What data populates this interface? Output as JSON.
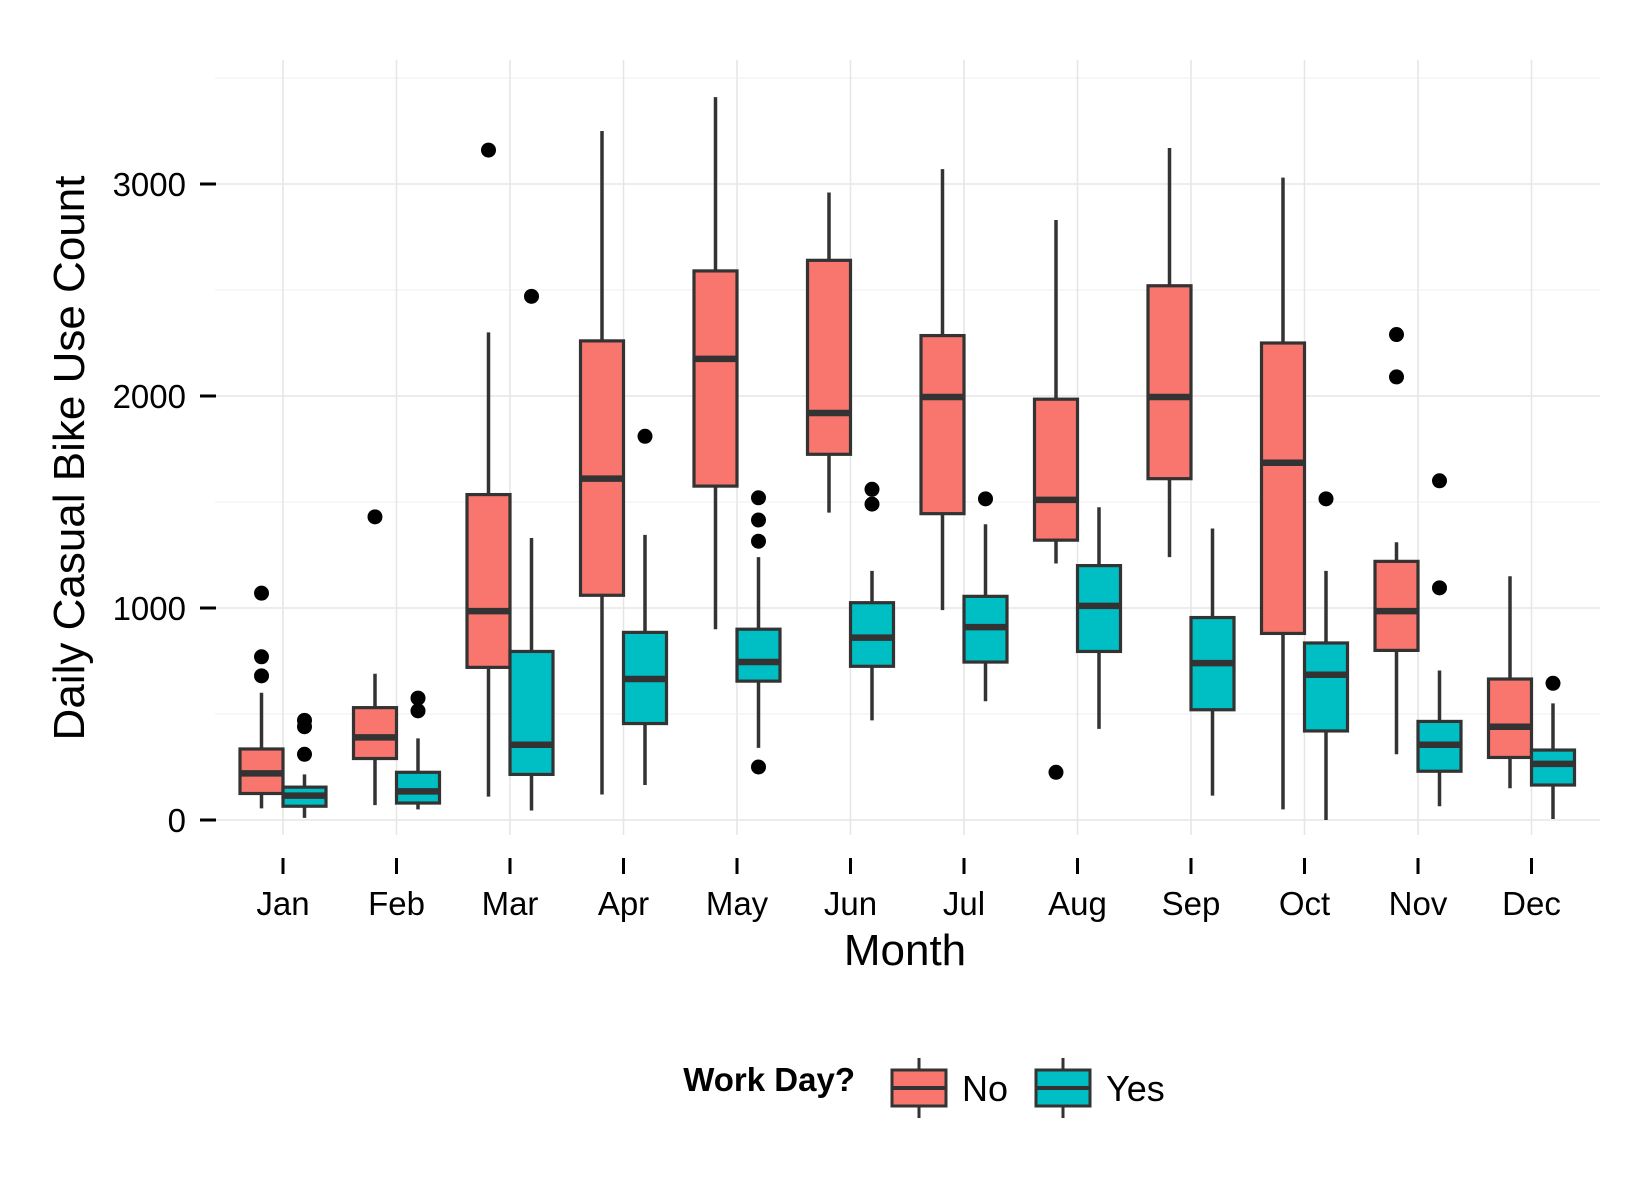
{
  "chart_data": {
    "type": "boxplot",
    "title": "",
    "xlabel": "Month",
    "ylabel": "Daily Casual Bike Use Count",
    "categories": [
      "Jan",
      "Feb",
      "Mar",
      "Apr",
      "May",
      "Jun",
      "Jul",
      "Aug",
      "Sep",
      "Oct",
      "Nov",
      "Dec"
    ],
    "yticks": [
      0,
      1000,
      2000,
      3000
    ],
    "ylim": [
      -120,
      3520
    ],
    "grid": true,
    "legend": {
      "title": "Work Day?",
      "position": "bottom"
    },
    "series": [
      {
        "name": "No",
        "color": "#F8766D",
        "boxes": [
          {
            "min": 55,
            "q1": 125,
            "median": 220,
            "q3": 335,
            "max": 600,
            "outliers": [
              680,
              770,
              1070
            ]
          },
          {
            "min": 70,
            "q1": 290,
            "median": 390,
            "q3": 530,
            "max": 690,
            "outliers": [
              1430
            ]
          },
          {
            "min": 110,
            "q1": 720,
            "median": 985,
            "q3": 1535,
            "max": 2300,
            "outliers": [
              3160
            ]
          },
          {
            "min": 120,
            "q1": 1060,
            "median": 1610,
            "q3": 2260,
            "max": 3250,
            "outliers": []
          },
          {
            "min": 900,
            "q1": 1575,
            "median": 2175,
            "q3": 2590,
            "max": 3410,
            "outliers": []
          },
          {
            "min": 1450,
            "q1": 1725,
            "median": 1920,
            "q3": 2640,
            "max": 2960,
            "outliers": []
          },
          {
            "min": 990,
            "q1": 1445,
            "median": 1995,
            "q3": 2285,
            "max": 3070,
            "outliers": []
          },
          {
            "min": 1210,
            "q1": 1320,
            "median": 1510,
            "q3": 1985,
            "max": 2830,
            "outliers": [
              225
            ]
          },
          {
            "min": 1240,
            "q1": 1610,
            "median": 1995,
            "q3": 2520,
            "max": 3170,
            "outliers": []
          },
          {
            "min": 50,
            "q1": 880,
            "median": 1685,
            "q3": 2250,
            "max": 3030,
            "outliers": []
          },
          {
            "min": 310,
            "q1": 800,
            "median": 985,
            "q3": 1220,
            "max": 1310,
            "outliers": [
              2090,
              2290
            ]
          },
          {
            "min": 150,
            "q1": 295,
            "median": 440,
            "q3": 665,
            "max": 1150,
            "outliers": []
          }
        ]
      },
      {
        "name": "Yes",
        "color": "#00BFC4",
        "boxes": [
          {
            "min": 10,
            "q1": 65,
            "median": 115,
            "q3": 155,
            "max": 215,
            "outliers": [
              310,
              440,
              470
            ]
          },
          {
            "min": 50,
            "q1": 80,
            "median": 135,
            "q3": 225,
            "max": 385,
            "outliers": [
              515,
              575
            ]
          },
          {
            "min": 45,
            "q1": 215,
            "median": 355,
            "q3": 795,
            "max": 1330,
            "outliers": [
              2470
            ]
          },
          {
            "min": 165,
            "q1": 455,
            "median": 665,
            "q3": 885,
            "max": 1345,
            "outliers": [
              1810
            ]
          },
          {
            "min": 340,
            "q1": 655,
            "median": 745,
            "q3": 900,
            "max": 1240,
            "outliers": [
              250,
              1315,
              1415,
              1520
            ]
          },
          {
            "min": 470,
            "q1": 725,
            "median": 860,
            "q3": 1025,
            "max": 1175,
            "outliers": [
              1490,
              1560
            ]
          },
          {
            "min": 560,
            "q1": 745,
            "median": 910,
            "q3": 1055,
            "max": 1395,
            "outliers": [
              1515
            ]
          },
          {
            "min": 430,
            "q1": 795,
            "median": 1010,
            "q3": 1200,
            "max": 1475,
            "outliers": []
          },
          {
            "min": 115,
            "q1": 520,
            "median": 740,
            "q3": 955,
            "max": 1375,
            "outliers": []
          },
          {
            "min": 0,
            "q1": 420,
            "median": 685,
            "q3": 835,
            "max": 1175,
            "outliers": [
              1515
            ]
          },
          {
            "min": 65,
            "q1": 230,
            "median": 355,
            "q3": 465,
            "max": 705,
            "outliers": [
              1095,
              1600
            ]
          },
          {
            "min": 5,
            "q1": 165,
            "median": 265,
            "q3": 330,
            "max": 550,
            "outliers": [
              645
            ]
          }
        ]
      }
    ]
  }
}
